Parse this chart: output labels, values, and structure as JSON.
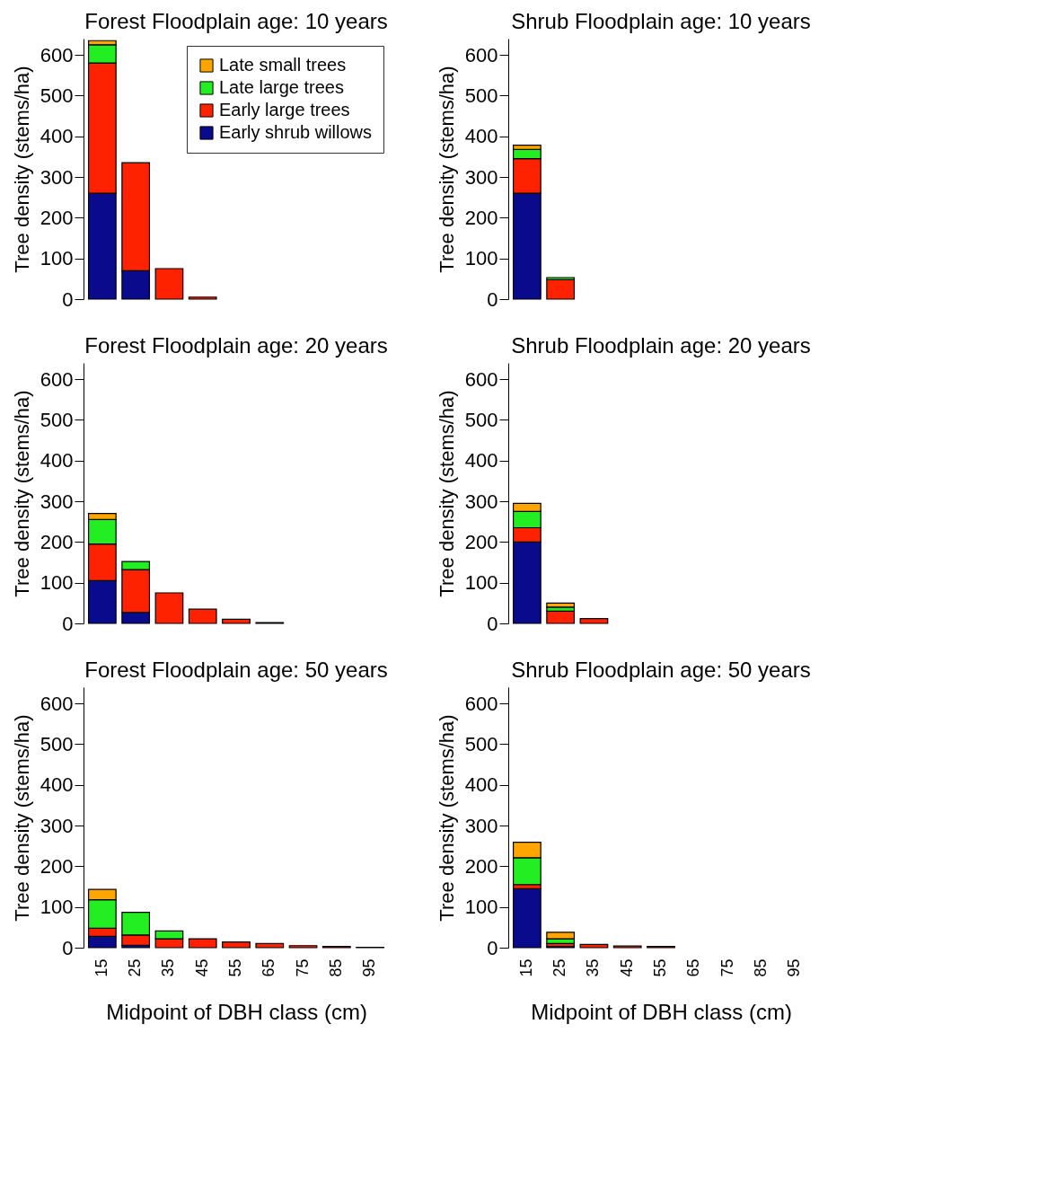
{
  "chart_data": [
    {
      "type": "bar",
      "title": "Forest Floodplain age: 10  years",
      "ylabel": "Tree density (stems/ha)",
      "stacked": true,
      "legend": "top right",
      "tick_labels": "y",
      "categories": [
        "15",
        "25",
        "35",
        "45",
        "55",
        "65",
        "75",
        "85",
        "95"
      ],
      "series": [
        {
          "name": "Early shrub willows",
          "color": "#0a0a8c",
          "values": [
            260,
            70,
            0,
            0,
            0,
            0,
            0,
            0,
            0
          ]
        },
        {
          "name": "Early large trees",
          "color": "#ff2200",
          "values": [
            320,
            265,
            75,
            5,
            0,
            0,
            0,
            0,
            0
          ]
        },
        {
          "name": "Late large trees",
          "color": "#22ee22",
          "values": [
            45,
            0,
            0,
            0,
            0,
            0,
            0,
            0,
            0
          ]
        },
        {
          "name": "Late small trees",
          "color": "#ffa500",
          "values": [
            10,
            0,
            0,
            0,
            0,
            0,
            0,
            0,
            0
          ]
        }
      ],
      "ylim": [
        0,
        640
      ],
      "yticks": [
        0,
        100,
        200,
        300,
        400,
        500,
        600
      ]
    },
    {
      "type": "bar",
      "title": "Shrub Floodplain age: 10  years",
      "ylabel": "Tree density (stems/ha)",
      "stacked": true,
      "tick_labels": "y",
      "categories": [
        "15",
        "25",
        "35",
        "45",
        "55",
        "65",
        "75",
        "85",
        "95"
      ],
      "series": [
        {
          "color": "#0a0a8c",
          "values": [
            260,
            0,
            0,
            0,
            0,
            0,
            0,
            0,
            0
          ]
        },
        {
          "color": "#ff2200",
          "values": [
            85,
            48,
            0,
            0,
            0,
            0,
            0,
            0,
            0
          ]
        },
        {
          "color": "#22ee22",
          "values": [
            23,
            5,
            0,
            0,
            0,
            0,
            0,
            0,
            0
          ]
        },
        {
          "color": "#ffa500",
          "values": [
            10,
            0,
            0,
            0,
            0,
            0,
            0,
            0,
            0
          ]
        }
      ],
      "ylim": [
        0,
        640
      ],
      "yticks": [
        0,
        100,
        200,
        300,
        400,
        500,
        600
      ]
    },
    {
      "type": "bar",
      "title": "Forest Floodplain age: 20  years",
      "ylabel": "Tree density (stems/ha)",
      "stacked": true,
      "tick_labels": "y",
      "categories": [
        "15",
        "25",
        "35",
        "45",
        "55",
        "65",
        "75",
        "85",
        "95"
      ],
      "series": [
        {
          "color": "#0a0a8c",
          "values": [
            105,
            27,
            0,
            0,
            0,
            0,
            0,
            0,
            0
          ]
        },
        {
          "color": "#ff2200",
          "values": [
            90,
            105,
            75,
            35,
            10,
            2,
            0,
            0,
            0
          ]
        },
        {
          "color": "#22ee22",
          "values": [
            60,
            20,
            0,
            0,
            0,
            0,
            0,
            0,
            0
          ]
        },
        {
          "color": "#ffa500",
          "values": [
            15,
            0,
            0,
            0,
            0,
            0,
            0,
            0,
            0
          ]
        }
      ],
      "ylim": [
        0,
        640
      ],
      "yticks": [
        0,
        100,
        200,
        300,
        400,
        500,
        600
      ]
    },
    {
      "type": "bar",
      "title": "Shrub Floodplain age: 20  years",
      "ylabel": "Tree density (stems/ha)",
      "stacked": true,
      "tick_labels": "y",
      "categories": [
        "15",
        "25",
        "35",
        "45",
        "55",
        "65",
        "75",
        "85",
        "95"
      ],
      "series": [
        {
          "color": "#0a0a8c",
          "values": [
            200,
            0,
            0,
            0,
            0,
            0,
            0,
            0,
            0
          ]
        },
        {
          "color": "#ff2200",
          "values": [
            35,
            30,
            12,
            0,
            0,
            0,
            0,
            0,
            0
          ]
        },
        {
          "color": "#22ee22",
          "values": [
            40,
            10,
            0,
            0,
            0,
            0,
            0,
            0,
            0
          ]
        },
        {
          "color": "#ffa500",
          "values": [
            20,
            10,
            0,
            0,
            0,
            0,
            0,
            0,
            0
          ]
        }
      ],
      "ylim": [
        0,
        640
      ],
      "yticks": [
        0,
        100,
        200,
        300,
        400,
        500,
        600
      ]
    },
    {
      "type": "bar",
      "title": "Forest Floodplain age: 50  years",
      "ylabel": "Tree density (stems/ha)",
      "xlabel": "Midpoint of DBH class (cm)",
      "stacked": true,
      "categories": [
        "15",
        "25",
        "35",
        "45",
        "55",
        "65",
        "75",
        "85",
        "95"
      ],
      "series": [
        {
          "color": "#0a0a8c",
          "values": [
            28,
            6,
            0,
            0,
            0,
            0,
            0,
            0,
            0
          ]
        },
        {
          "color": "#ff2200",
          "values": [
            20,
            25,
            22,
            22,
            14,
            10,
            5,
            3,
            1
          ]
        },
        {
          "color": "#22ee22",
          "values": [
            70,
            56,
            19,
            0,
            0,
            0,
            0,
            0,
            0
          ]
        },
        {
          "color": "#ffa500",
          "values": [
            25,
            0,
            0,
            0,
            0,
            0,
            0,
            0,
            0
          ]
        }
      ],
      "ylim": [
        0,
        640
      ],
      "yticks": [
        0,
        100,
        200,
        300,
        400,
        500,
        600
      ]
    },
    {
      "type": "bar",
      "title": "Shrub Floodplain age: 50  years",
      "ylabel": "Tree density (stems/ha)",
      "xlabel": "Midpoint of DBH class (cm)",
      "stacked": true,
      "categories": [
        "15",
        "25",
        "35",
        "45",
        "55",
        "65",
        "75",
        "85",
        "95"
      ],
      "series": [
        {
          "color": "#0a0a8c",
          "values": [
            145,
            3,
            0,
            0,
            0,
            0,
            0,
            0,
            0
          ]
        },
        {
          "color": "#ff2200",
          "values": [
            10,
            7,
            8,
            4,
            3,
            0,
            0,
            0,
            0
          ]
        },
        {
          "color": "#22ee22",
          "values": [
            66,
            12,
            0,
            0,
            0,
            0,
            0,
            0,
            0
          ]
        },
        {
          "color": "#ffa500",
          "values": [
            38,
            16,
            0,
            0,
            0,
            0,
            0,
            0,
            0
          ]
        }
      ],
      "ylim": [
        0,
        640
      ],
      "yticks": [
        0,
        100,
        200,
        300,
        400,
        500,
        600
      ]
    }
  ]
}
